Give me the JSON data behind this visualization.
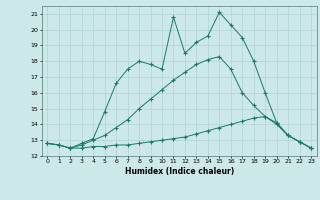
{
  "title": "",
  "xlabel": "Humidex (Indice chaleur)",
  "xlim": [
    -0.5,
    23.5
  ],
  "ylim": [
    12,
    21.5
  ],
  "yticks": [
    12,
    13,
    14,
    15,
    16,
    17,
    18,
    19,
    20,
    21
  ],
  "xticks": [
    0,
    1,
    2,
    3,
    4,
    5,
    6,
    7,
    8,
    9,
    10,
    11,
    12,
    13,
    14,
    15,
    16,
    17,
    18,
    19,
    20,
    21,
    22,
    23
  ],
  "background_color": "#cce8e8",
  "grid_color": "#aacccc",
  "line_color": "#1a7a6a",
  "lines": [
    {
      "x": [
        0,
        1,
        2,
        3,
        4,
        5,
        6,
        7,
        8,
        9,
        10,
        11,
        12,
        13,
        14,
        15,
        16,
        17,
        18,
        19,
        20,
        21,
        22,
        23
      ],
      "y": [
        12.8,
        12.7,
        12.5,
        12.5,
        12.6,
        12.6,
        12.7,
        12.7,
        12.8,
        12.9,
        13.0,
        13.1,
        13.2,
        13.4,
        13.6,
        13.8,
        14.0,
        14.2,
        14.4,
        14.5,
        14.0,
        13.3,
        12.9,
        12.5
      ]
    },
    {
      "x": [
        0,
        1,
        2,
        3,
        4,
        5,
        6,
        7,
        8,
        9,
        10,
        11,
        12,
        13,
        14,
        15,
        16,
        17,
        18,
        19,
        20,
        21,
        22,
        23
      ],
      "y": [
        12.8,
        12.7,
        12.5,
        12.7,
        13.0,
        13.3,
        13.8,
        14.3,
        15.0,
        15.6,
        16.2,
        16.8,
        17.3,
        17.8,
        18.1,
        18.3,
        17.5,
        16.0,
        15.2,
        14.5,
        14.1,
        13.3,
        12.9,
        12.5
      ]
    },
    {
      "x": [
        0,
        1,
        2,
        3,
        4,
        5,
        6,
        7,
        8,
        9,
        10,
        11,
        12,
        13,
        14,
        15,
        16,
        17,
        18,
        19,
        20,
        21,
        22,
        23
      ],
      "y": [
        12.8,
        12.7,
        12.5,
        12.8,
        13.1,
        14.8,
        16.6,
        17.5,
        18.0,
        17.8,
        17.5,
        20.8,
        18.5,
        19.2,
        19.6,
        21.1,
        20.3,
        19.5,
        18.0,
        16.0,
        14.1,
        13.3,
        12.9,
        12.5
      ]
    }
  ]
}
